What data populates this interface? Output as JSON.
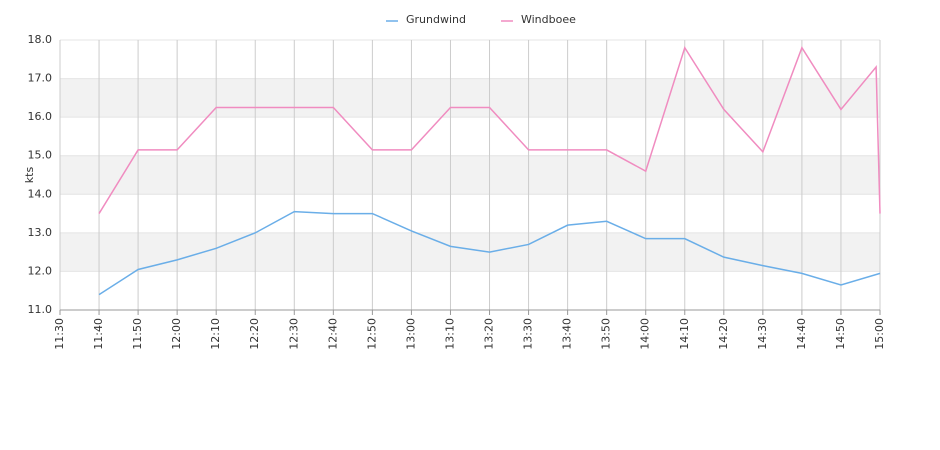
{
  "chart_data": {
    "type": "line",
    "y_label": "kts",
    "xlim": [
      "11:30",
      "15:00"
    ],
    "xticks": [
      "11:30",
      "11:40",
      "11:50",
      "12:00",
      "12:10",
      "12:20",
      "12:30",
      "12:40",
      "12:50",
      "13:00",
      "13:10",
      "13:20",
      "13:30",
      "13:40",
      "13:50",
      "14:00",
      "14:10",
      "14:20",
      "14:30",
      "14:40",
      "14:50",
      "15:00"
    ],
    "ylim": [
      11,
      18
    ],
    "yticks": [
      {
        "value": 11,
        "label": "11.0"
      },
      {
        "value": 12,
        "label": "12.0"
      },
      {
        "value": 13,
        "label": "13.0"
      },
      {
        "value": 14,
        "label": "14.0"
      },
      {
        "value": 15,
        "label": "15.0"
      },
      {
        "value": 16,
        "label": "16.0"
      },
      {
        "value": 17,
        "label": "17.0"
      },
      {
        "value": 18,
        "label": "18.0"
      }
    ],
    "grid": true,
    "series": [
      {
        "name": "Grundwind",
        "color": "#6aaee8",
        "x": [
          "11:40",
          "11:50",
          "12:00",
          "12:10",
          "12:20",
          "12:30",
          "12:40",
          "12:50",
          "13:00",
          "13:10",
          "13:20",
          "13:30",
          "13:40",
          "13:50",
          "14:00",
          "14:10",
          "14:20",
          "14:30",
          "14:40",
          "14:50",
          "15:00"
        ],
        "values": [
          11.4,
          12.05,
          12.3,
          12.6,
          13.0,
          13.55,
          13.5,
          13.5,
          13.05,
          12.65,
          12.5,
          12.7,
          13.2,
          13.3,
          12.85,
          12.85,
          12.37,
          12.15,
          11.95,
          11.65,
          11.95
        ]
      },
      {
        "name": "Windboee",
        "color": "#f08cc0",
        "x": [
          "11:40",
          "11:50",
          "12:00",
          "12:10",
          "12:20",
          "12:30",
          "12:40",
          "12:50",
          "13:00",
          "13:10",
          "13:20",
          "13:30",
          "13:40",
          "13:50",
          "14:00",
          "14:10",
          "14:20",
          "14:30",
          "14:40",
          "14:50",
          "14:59",
          "15:00"
        ],
        "values": [
          13.5,
          15.15,
          15.15,
          16.25,
          16.25,
          16.25,
          16.25,
          15.15,
          15.15,
          16.25,
          16.25,
          15.15,
          15.15,
          15.15,
          14.6,
          17.8,
          16.2,
          15.1,
          17.8,
          16.2,
          17.3,
          13.5
        ]
      }
    ]
  }
}
